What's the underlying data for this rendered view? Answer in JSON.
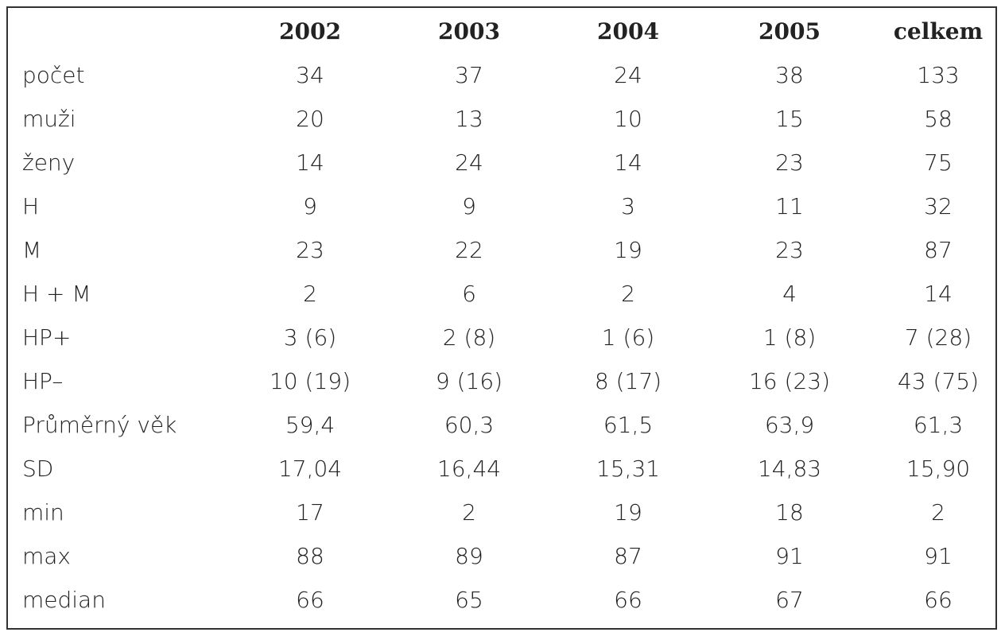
{
  "table": {
    "columns": [
      "2002",
      "2003",
      "2004",
      "2005",
      "celkem"
    ],
    "rows": [
      [
        "počet",
        "34",
        "37",
        "24",
        "38",
        "133"
      ],
      [
        "muži",
        "20",
        "13",
        "10",
        "15",
        "58"
      ],
      [
        "ženy",
        "14",
        "24",
        "14",
        "23",
        "75"
      ],
      [
        "H",
        "9",
        "9",
        "3",
        "11",
        "32"
      ],
      [
        "M",
        "23",
        "22",
        "19",
        "23",
        "87"
      ],
      [
        "H + M",
        "2",
        "6",
        "2",
        "4",
        "14"
      ],
      [
        "HP+",
        "3 (6)",
        "2 (8)",
        "1 (6)",
        "1 (8)",
        "7 (28)"
      ],
      [
        "HP–",
        "10 (19)",
        "9 (16)",
        "8 (17)",
        "16 (23)",
        "43 (75)"
      ],
      [
        "Průměrný věk",
        "59,4",
        "60,3",
        "61,5",
        "63,9",
        "61,3"
      ],
      [
        "SD",
        "17,04",
        "16,44",
        "15,31",
        "14,83",
        "15,90"
      ],
      [
        "min",
        "17",
        "2",
        "19",
        "18",
        "2"
      ],
      [
        "max",
        "88",
        "89",
        "87",
        "91",
        "91"
      ],
      [
        "median",
        "66",
        "65",
        "66",
        "67",
        "66"
      ]
    ]
  }
}
